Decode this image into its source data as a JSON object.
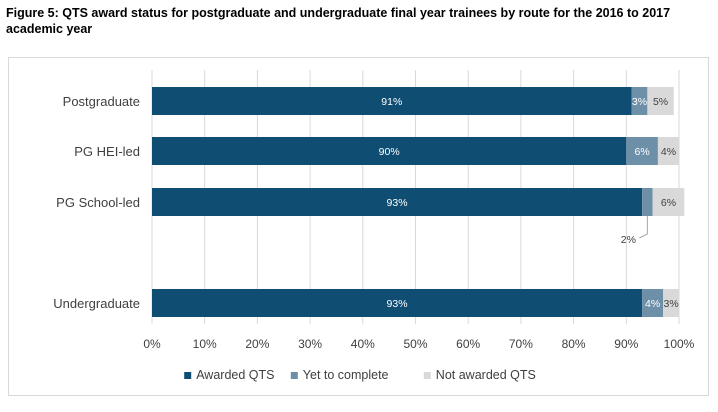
{
  "figure": {
    "title": "Figure 5: QTS award status for postgraduate and undergraduate final year trainees by route for the 2016 to 2017 academic year"
  },
  "chart_data": {
    "type": "bar",
    "orientation": "horizontal",
    "stacked": true,
    "title": "Figure 5: QTS award status for postgraduate and undergraduate final year trainees by route for the 2016 to 2017 academic year",
    "categories": [
      "Postgraduate",
      "PG HEI-led",
      "PG School-led",
      "Undergraduate"
    ],
    "series": [
      {
        "name": "Awarded QTS",
        "values": [
          91,
          90,
          93,
          93
        ],
        "labels": [
          "91%",
          "90%",
          "93%",
          "93%"
        ],
        "color": "#0f4d73"
      },
      {
        "name": "Yet to complete",
        "values": [
          3,
          6,
          2,
          4
        ],
        "labels": [
          "3%",
          "6%",
          "2%",
          "4%"
        ],
        "color": "#6e8fa8"
      },
      {
        "name": "Not awarded QTS",
        "values": [
          5,
          4,
          6,
          3
        ],
        "labels": [
          "5%",
          "4%",
          "6%",
          "3%"
        ],
        "color": "#d9d9d9"
      }
    ],
    "xlim": [
      0,
      100
    ],
    "xticks": [
      "0%",
      "10%",
      "20%",
      "30%",
      "40%",
      "50%",
      "60%",
      "70%",
      "80%",
      "90%",
      "100%"
    ],
    "grid": true,
    "legend": "bottom",
    "colors": {
      "gridline": "#d9d9d9",
      "label_dark_bg": "#ffffff",
      "label_light_bg": "#404040"
    }
  }
}
